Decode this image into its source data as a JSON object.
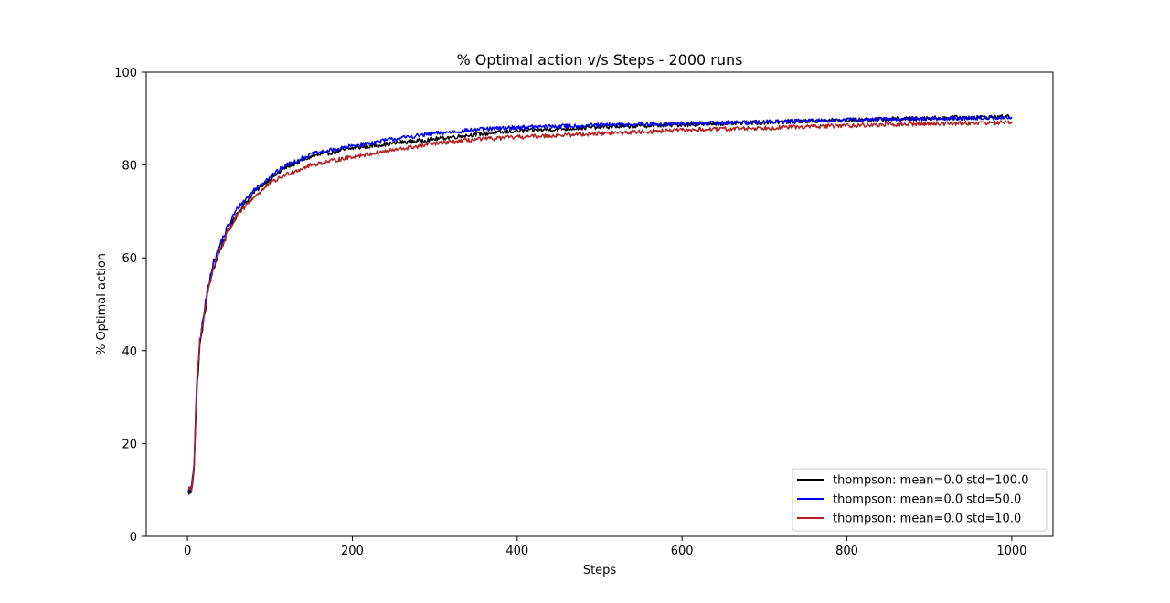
{
  "chart_data": {
    "type": "line",
    "title": "% Optimal action v/s Steps - 2000 runs",
    "xlabel": "Steps",
    "ylabel": "% Optimal action",
    "xlim": [
      -50,
      1050
    ],
    "ylim": [
      0,
      100
    ],
    "xticks": [
      0,
      200,
      400,
      600,
      800,
      1000
    ],
    "yticks": [
      0,
      20,
      40,
      60,
      80,
      100
    ],
    "grid": false,
    "legend_position": "lower right",
    "x": [
      1,
      5,
      8,
      10,
      12,
      15,
      20,
      25,
      30,
      40,
      50,
      60,
      80,
      100,
      120,
      150,
      200,
      250,
      300,
      350,
      400,
      500,
      600,
      700,
      800,
      900,
      1000
    ],
    "series": [
      {
        "name": "thompson: mean=0.0 std=100.0",
        "color": "#000000",
        "values": [
          9.5,
          9.6,
          15,
          25,
          33,
          41,
          47,
          53,
          57,
          62,
          66,
          69.5,
          74,
          77,
          79.5,
          81.8,
          83.6,
          84.7,
          85.6,
          86.6,
          87.3,
          88.2,
          88.7,
          89.2,
          89.7,
          90.1,
          90.4
        ]
      },
      {
        "name": "thompson: mean=0.0 std=50.0",
        "color": "#0000ee",
        "values": [
          10.0,
          10.2,
          16,
          27,
          35,
          42,
          48,
          54,
          58,
          63,
          67,
          70.5,
          74.5,
          77.5,
          80,
          82.3,
          84.1,
          85.6,
          86.8,
          87.6,
          88.1,
          88.6,
          88.9,
          89.3,
          89.7,
          90.0,
          90.2
        ]
      },
      {
        "name": "thompson: mean=0.0 std=10.0",
        "color": "#b22222",
        "values": [
          10.2,
          10.5,
          15,
          26,
          34,
          42,
          47,
          53,
          57,
          62,
          66,
          69,
          73,
          76,
          78,
          80,
          81.8,
          83.2,
          84.6,
          85.5,
          86.0,
          86.8,
          87.5,
          88.0,
          88.5,
          88.9,
          89.2
        ]
      }
    ]
  }
}
